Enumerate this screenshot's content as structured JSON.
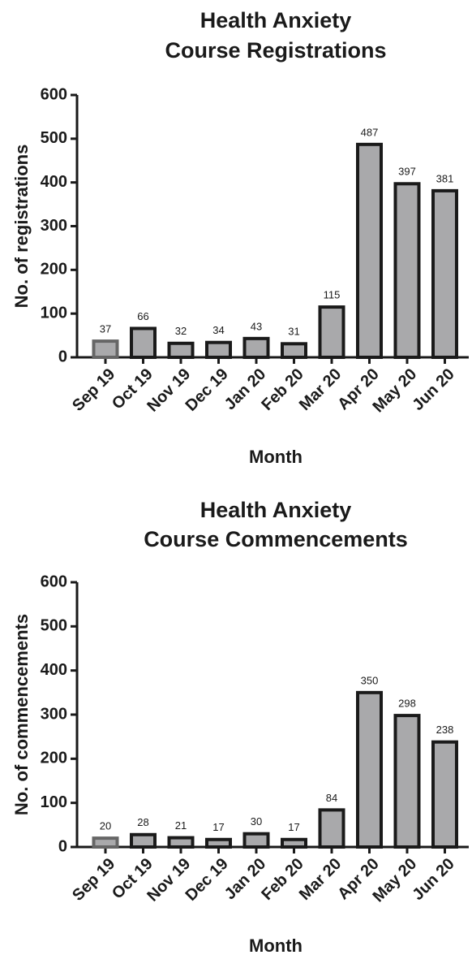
{
  "chart_data": [
    {
      "type": "bar",
      "title": [
        "Health Anxiety",
        "Course Registrations"
      ],
      "x_label": "Month",
      "y_label": "No. of registrations",
      "categories": [
        "Sep 19",
        "Oct 19",
        "Nov 19",
        "Dec 19",
        "Jan 20",
        "Feb 20",
        "Mar 20",
        "Apr 20",
        "May 20",
        "Jun 20"
      ],
      "values": [
        37,
        66,
        32,
        34,
        43,
        31,
        115,
        487,
        397,
        381
      ],
      "color": "#a9a9ab",
      "edge_colors": [
        "#666666",
        "#1a1a1a",
        "#1a1a1a",
        "#1a1a1a",
        "#1a1a1a",
        "#1a1a1a",
        "#1a1a1a",
        "#1a1a1a",
        "#1a1a1a",
        "#1a1a1a"
      ],
      "ylim": [
        0,
        600
      ],
      "yticks": [
        0,
        100,
        200,
        300,
        400,
        500,
        600
      ],
      "grid": false
    },
    {
      "type": "bar",
      "title": [
        "Health Anxiety",
        "Course Commencements"
      ],
      "x_label": "Month",
      "y_label": "No. of commencements",
      "categories": [
        "Sep 19",
        "Oct 19",
        "Nov 19",
        "Dec 19",
        "Jan 20",
        "Feb 20",
        "Mar 20",
        "Apr 20",
        "May 20",
        "Jun 20"
      ],
      "values": [
        20,
        28,
        21,
        17,
        30,
        17,
        84,
        350,
        298,
        238
      ],
      "color": "#a9a9ab",
      "edge_colors": [
        "#666666",
        "#1a1a1a",
        "#1a1a1a",
        "#1a1a1a",
        "#1a1a1a",
        "#1a1a1a",
        "#1a1a1a",
        "#1a1a1a",
        "#1a1a1a",
        "#1a1a1a"
      ],
      "ylim": [
        0,
        600
      ],
      "yticks": [
        0,
        100,
        200,
        300,
        400,
        500,
        600
      ],
      "grid": false
    }
  ]
}
